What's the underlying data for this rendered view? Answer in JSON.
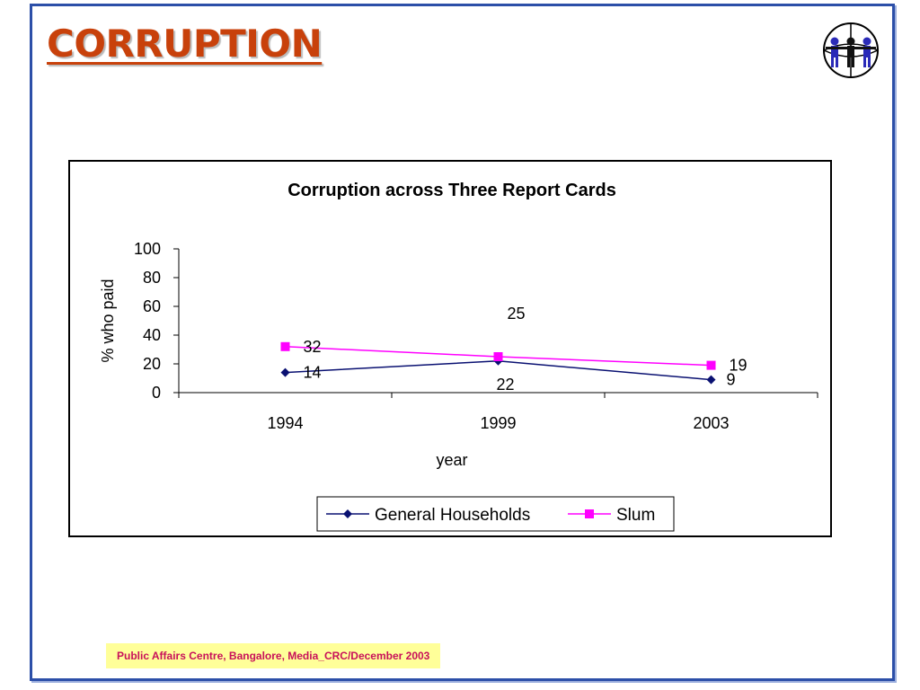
{
  "slide": {
    "title": "CORRUPTION",
    "footer": "Public Affairs Centre, Bangalore,  Media_CRC/December 2003"
  },
  "logo": {
    "icon": "people-globe-icon"
  },
  "colors": {
    "title": "#c8410b",
    "frame": "#2c4fa8",
    "series1": "#0a1172",
    "series2": "#ff00ff",
    "footer_bg": "#ffff99",
    "footer_text": "#c8105a"
  },
  "chart_data": {
    "type": "line",
    "title": "Corruption across Three Report Cards",
    "xlabel": "year",
    "ylabel": "% who paid",
    "categories": [
      "1994",
      "1999",
      "2003"
    ],
    "ylim": [
      0,
      100
    ],
    "yticks": [
      "0",
      "20",
      "40",
      "60",
      "80",
      "100"
    ],
    "grid": false,
    "legend_position": "bottom",
    "series": [
      {
        "name": "General Households",
        "values": [
          14,
          22,
          9
        ],
        "labels": [
          "14",
          "22",
          "9"
        ],
        "marker": "diamond",
        "color": "#0a1172"
      },
      {
        "name": "Slum",
        "values": [
          32,
          25,
          19
        ],
        "labels": [
          "32",
          "25",
          "19"
        ],
        "marker": "square",
        "color": "#ff00ff"
      }
    ]
  }
}
